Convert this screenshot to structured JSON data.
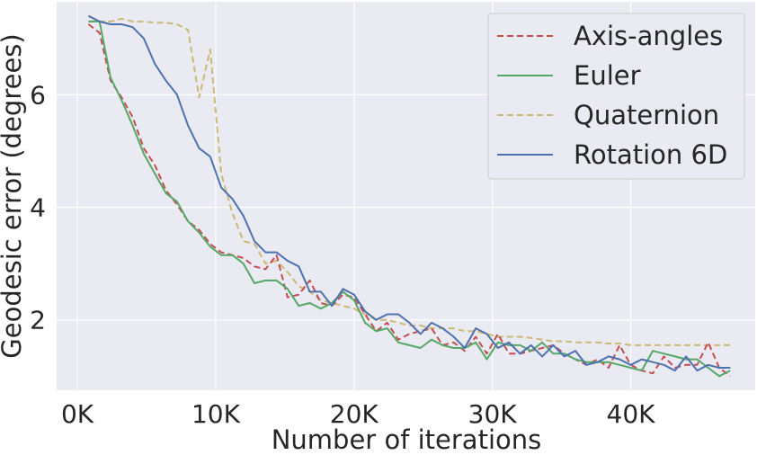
{
  "chart_data": {
    "type": "line",
    "title": "",
    "xlabel": "Number of iterations",
    "ylabel": "Geodesic error (degrees)",
    "xlim": [
      -1500,
      49000
    ],
    "ylim": [
      0.75,
      7.65
    ],
    "grid": true,
    "legend_position": "top-right",
    "x_ticks": [
      {
        "value": 0,
        "label": "0K"
      },
      {
        "value": 10000,
        "label": "10K"
      },
      {
        "value": 20000,
        "label": "20K"
      },
      {
        "value": 30000,
        "label": "30K"
      },
      {
        "value": 40000,
        "label": "40K"
      }
    ],
    "y_ticks": [
      {
        "value": 2,
        "label": "2"
      },
      {
        "value": 4,
        "label": "4"
      },
      {
        "value": 6,
        "label": "6"
      }
    ],
    "colors": {
      "background": "#eaeaf2",
      "grid": "#ffffff",
      "axis_angles": "#c44e52",
      "euler": "#55a868",
      "quaternion": "#ccb974",
      "rotation_6d": "#4c72b0"
    },
    "series": [
      {
        "name": "Axis-angles",
        "color": "#c44e52",
        "dash": "dashed",
        "points": [
          [
            800,
            7.25
          ],
          [
            1600,
            7.1
          ],
          [
            2400,
            6.25
          ],
          [
            3200,
            5.95
          ],
          [
            4000,
            5.6
          ],
          [
            4800,
            5.05
          ],
          [
            5600,
            4.75
          ],
          [
            6400,
            4.3
          ],
          [
            7200,
            4.05
          ],
          [
            8000,
            3.75
          ],
          [
            8800,
            3.6
          ],
          [
            9600,
            3.35
          ],
          [
            10400,
            3.2
          ],
          [
            11200,
            3.15
          ],
          [
            12000,
            3.1
          ],
          [
            12800,
            2.95
          ],
          [
            13600,
            2.9
          ],
          [
            14400,
            3.15
          ],
          [
            15200,
            2.4
          ],
          [
            16000,
            2.45
          ],
          [
            16800,
            2.7
          ],
          [
            17600,
            2.3
          ],
          [
            18400,
            2.25
          ],
          [
            19200,
            2.45
          ],
          [
            20000,
            2.4
          ],
          [
            20800,
            2.1
          ],
          [
            21600,
            1.8
          ],
          [
            22400,
            1.95
          ],
          [
            23200,
            1.65
          ],
          [
            24000,
            1.75
          ],
          [
            24800,
            1.8
          ],
          [
            25600,
            1.85
          ],
          [
            26400,
            1.55
          ],
          [
            27200,
            1.6
          ],
          [
            28000,
            1.45
          ],
          [
            28800,
            1.7
          ],
          [
            29600,
            1.4
          ],
          [
            30400,
            1.75
          ],
          [
            31200,
            1.4
          ],
          [
            32000,
            1.4
          ],
          [
            32800,
            1.45
          ],
          [
            33600,
            1.5
          ],
          [
            34400,
            1.55
          ],
          [
            35200,
            1.4
          ],
          [
            36000,
            1.3
          ],
          [
            36800,
            1.2
          ],
          [
            37600,
            1.3
          ],
          [
            38400,
            1.15
          ],
          [
            39200,
            1.55
          ],
          [
            40000,
            1.2
          ],
          [
            40800,
            1.1
          ],
          [
            41600,
            1.05
          ],
          [
            42400,
            1.35
          ],
          [
            43200,
            1.15
          ],
          [
            44000,
            1.2
          ],
          [
            44800,
            1.2
          ],
          [
            45600,
            1.6
          ],
          [
            46400,
            1.15
          ],
          [
            47200,
            1.0
          ]
        ]
      },
      {
        "name": "Euler",
        "color": "#55a868",
        "dash": "solid",
        "points": [
          [
            800,
            7.3
          ],
          [
            1600,
            7.3
          ],
          [
            2400,
            6.3
          ],
          [
            3200,
            5.9
          ],
          [
            4000,
            5.45
          ],
          [
            4800,
            4.95
          ],
          [
            5600,
            4.6
          ],
          [
            6400,
            4.25
          ],
          [
            7200,
            4.1
          ],
          [
            8000,
            3.75
          ],
          [
            8800,
            3.55
          ],
          [
            9600,
            3.3
          ],
          [
            10400,
            3.15
          ],
          [
            11200,
            3.15
          ],
          [
            12000,
            3.0
          ],
          [
            12800,
            2.65
          ],
          [
            13600,
            2.7
          ],
          [
            14400,
            2.7
          ],
          [
            15200,
            2.55
          ],
          [
            16000,
            2.25
          ],
          [
            16800,
            2.3
          ],
          [
            17600,
            2.2
          ],
          [
            18400,
            2.3
          ],
          [
            19200,
            2.5
          ],
          [
            20000,
            2.35
          ],
          [
            20800,
            1.95
          ],
          [
            21600,
            1.8
          ],
          [
            22400,
            1.85
          ],
          [
            23200,
            1.6
          ],
          [
            24000,
            1.55
          ],
          [
            24800,
            1.5
          ],
          [
            25600,
            1.65
          ],
          [
            26400,
            1.55
          ],
          [
            27200,
            1.5
          ],
          [
            28000,
            1.5
          ],
          [
            28800,
            1.6
          ],
          [
            29600,
            1.3
          ],
          [
            30400,
            1.6
          ],
          [
            31200,
            1.55
          ],
          [
            32000,
            1.55
          ],
          [
            32800,
            1.45
          ],
          [
            33600,
            1.6
          ],
          [
            34400,
            1.4
          ],
          [
            35200,
            1.4
          ],
          [
            36000,
            1.3
          ],
          [
            36800,
            1.25
          ],
          [
            37600,
            1.25
          ],
          [
            38400,
            1.25
          ],
          [
            39200,
            1.2
          ],
          [
            40000,
            1.15
          ],
          [
            40800,
            1.1
          ],
          [
            41600,
            1.45
          ],
          [
            42400,
            1.4
          ],
          [
            43200,
            1.35
          ],
          [
            44000,
            1.3
          ],
          [
            44800,
            1.3
          ],
          [
            45600,
            1.15
          ],
          [
            46400,
            1.0
          ],
          [
            47200,
            1.1
          ]
        ]
      },
      {
        "name": "Quaternion",
        "color": "#ccb974",
        "dash": "dashed",
        "points": [
          [
            800,
            7.3
          ],
          [
            1600,
            7.3
          ],
          [
            2400,
            7.3
          ],
          [
            3200,
            7.35
          ],
          [
            4000,
            7.3
          ],
          [
            4800,
            7.3
          ],
          [
            5600,
            7.28
          ],
          [
            6400,
            7.28
          ],
          [
            7200,
            7.25
          ],
          [
            8000,
            7.15
          ],
          [
            8800,
            5.95
          ],
          [
            9600,
            6.8
          ],
          [
            10400,
            4.6
          ],
          [
            11200,
            3.9
          ],
          [
            12000,
            3.4
          ],
          [
            12800,
            3.35
          ],
          [
            13600,
            3.0
          ],
          [
            14400,
            3.05
          ],
          [
            15200,
            2.85
          ],
          [
            16000,
            2.6
          ],
          [
            16800,
            2.5
          ],
          [
            17600,
            2.35
          ],
          [
            18400,
            2.3
          ],
          [
            19200,
            2.25
          ],
          [
            20000,
            2.2
          ],
          [
            20800,
            2.1
          ],
          [
            21600,
            2.0
          ],
          [
            22400,
            2.0
          ],
          [
            23200,
            1.95
          ],
          [
            24000,
            1.9
          ],
          [
            24800,
            1.9
          ],
          [
            25600,
            1.85
          ],
          [
            26400,
            1.85
          ],
          [
            27200,
            1.85
          ],
          [
            28000,
            1.8
          ],
          [
            28800,
            1.8
          ],
          [
            29600,
            1.75
          ],
          [
            30400,
            1.7
          ],
          [
            31200,
            1.7
          ],
          [
            32000,
            1.7
          ],
          [
            32800,
            1.68
          ],
          [
            33600,
            1.65
          ],
          [
            34400,
            1.62
          ],
          [
            35200,
            1.62
          ],
          [
            36000,
            1.6
          ],
          [
            36800,
            1.6
          ],
          [
            37600,
            1.6
          ],
          [
            38400,
            1.58
          ],
          [
            39200,
            1.58
          ],
          [
            40000,
            1.55
          ],
          [
            40800,
            1.55
          ],
          [
            41600,
            1.55
          ],
          [
            42400,
            1.55
          ],
          [
            43200,
            1.55
          ],
          [
            44000,
            1.55
          ],
          [
            44800,
            1.55
          ],
          [
            45600,
            1.55
          ],
          [
            46400,
            1.55
          ],
          [
            47200,
            1.55
          ]
        ]
      },
      {
        "name": "Rotation 6D",
        "color": "#4c72b0",
        "dash": "solid",
        "points": [
          [
            800,
            7.4
          ],
          [
            1600,
            7.3
          ],
          [
            2400,
            7.25
          ],
          [
            3200,
            7.25
          ],
          [
            4000,
            7.2
          ],
          [
            4800,
            7.0
          ],
          [
            5600,
            6.55
          ],
          [
            6400,
            6.25
          ],
          [
            7200,
            6.0
          ],
          [
            8000,
            5.45
          ],
          [
            8800,
            5.05
          ],
          [
            9600,
            4.9
          ],
          [
            10400,
            4.35
          ],
          [
            11200,
            4.15
          ],
          [
            12000,
            3.85
          ],
          [
            12800,
            3.4
          ],
          [
            13600,
            3.2
          ],
          [
            14400,
            3.2
          ],
          [
            15200,
            3.05
          ],
          [
            16000,
            2.95
          ],
          [
            16800,
            2.5
          ],
          [
            17600,
            2.5
          ],
          [
            18400,
            2.25
          ],
          [
            19200,
            2.55
          ],
          [
            20000,
            2.45
          ],
          [
            20800,
            2.15
          ],
          [
            21600,
            2.0
          ],
          [
            22400,
            2.1
          ],
          [
            23200,
            2.1
          ],
          [
            24000,
            1.95
          ],
          [
            24800,
            1.75
          ],
          [
            25600,
            1.95
          ],
          [
            26400,
            1.85
          ],
          [
            27200,
            1.7
          ],
          [
            28000,
            1.5
          ],
          [
            28800,
            1.85
          ],
          [
            29600,
            1.75
          ],
          [
            30400,
            1.5
          ],
          [
            31200,
            1.6
          ],
          [
            32000,
            1.4
          ],
          [
            32800,
            1.55
          ],
          [
            33600,
            1.35
          ],
          [
            34400,
            1.55
          ],
          [
            35200,
            1.35
          ],
          [
            36000,
            1.45
          ],
          [
            36800,
            1.2
          ],
          [
            37600,
            1.25
          ],
          [
            38400,
            1.35
          ],
          [
            39200,
            1.3
          ],
          [
            40000,
            1.2
          ],
          [
            40800,
            1.3
          ],
          [
            41600,
            1.25
          ],
          [
            42400,
            1.2
          ],
          [
            43200,
            1.1
          ],
          [
            44000,
            1.35
          ],
          [
            44800,
            1.1
          ],
          [
            45600,
            1.2
          ],
          [
            46400,
            1.15
          ],
          [
            47200,
            1.15
          ]
        ]
      }
    ]
  }
}
